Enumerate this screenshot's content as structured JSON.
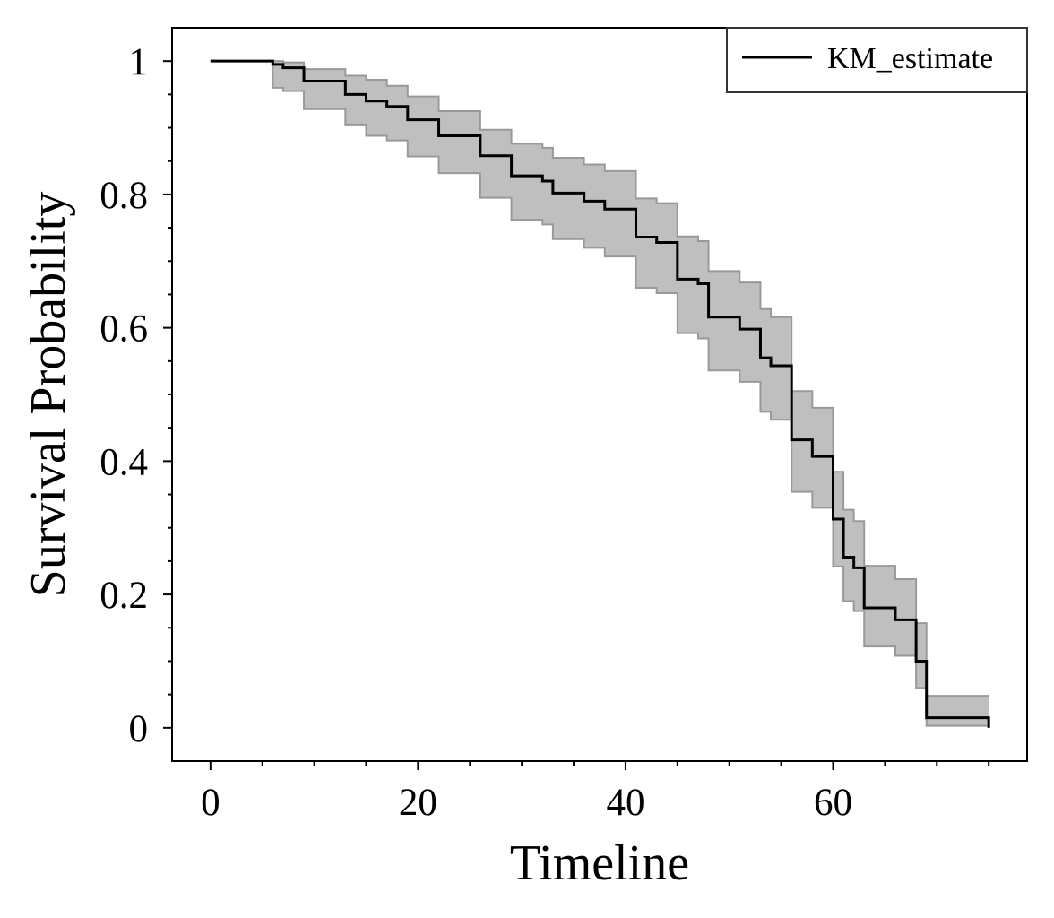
{
  "chart_data": {
    "type": "line",
    "title": "",
    "xlabel": "Timeline",
    "ylabel": "Survival Probability",
    "xlim": [
      -3.7,
      78.7
    ],
    "ylim": [
      -0.05,
      1.05
    ],
    "x_ticks": [
      0,
      20,
      40,
      60
    ],
    "x_tick_labels": [
      "0",
      "20",
      "40",
      "60"
    ],
    "x_minor_tick_step": 5,
    "y_ticks": [
      0,
      0.2,
      0.4,
      0.6,
      0.8,
      1
    ],
    "y_tick_labels": [
      "0",
      "0.2",
      "0.4",
      "0.6",
      "0.8",
      "1"
    ],
    "y_minor_tick_step": 0.05,
    "grid": false,
    "legend": {
      "position": "top-right",
      "entries": [
        "KM_estimate"
      ]
    },
    "colors": {
      "line": "#000000",
      "band": "#bfbfbf",
      "band_edge": "#999999"
    },
    "series": [
      {
        "name": "KM_estimate",
        "step": "post",
        "x": [
          0,
          6,
          7,
          9,
          13,
          15,
          17,
          19,
          22,
          26,
          29,
          32,
          33,
          36,
          38,
          41,
          43,
          45,
          47,
          48,
          51,
          53,
          54,
          56,
          58,
          60,
          61,
          62,
          63,
          66,
          68,
          69,
          75
        ],
        "y": [
          1.0,
          0.995,
          0.99,
          0.97,
          0.95,
          0.94,
          0.932,
          0.912,
          0.888,
          0.858,
          0.828,
          0.82,
          0.802,
          0.79,
          0.778,
          0.736,
          0.728,
          0.673,
          0.666,
          0.616,
          0.598,
          0.555,
          0.543,
          0.432,
          0.407,
          0.313,
          0.256,
          0.24,
          0.18,
          0.162,
          0.1,
          0.015,
          0.0
        ],
        "ci_lower": [
          1.0,
          0.96,
          0.955,
          0.928,
          0.905,
          0.888,
          0.881,
          0.857,
          0.832,
          0.795,
          0.762,
          0.755,
          0.733,
          0.72,
          0.707,
          0.66,
          0.652,
          0.592,
          0.584,
          0.536,
          0.519,
          0.474,
          0.462,
          0.354,
          0.33,
          0.242,
          0.19,
          0.175,
          0.122,
          0.108,
          0.06,
          0.003,
          0.003
        ],
        "ci_upper": [
          1.0,
          1.0,
          0.998,
          0.988,
          0.978,
          0.972,
          0.963,
          0.947,
          0.925,
          0.897,
          0.876,
          0.87,
          0.855,
          0.845,
          0.835,
          0.794,
          0.787,
          0.737,
          0.73,
          0.685,
          0.668,
          0.628,
          0.616,
          0.505,
          0.48,
          0.384,
          0.327,
          0.31,
          0.243,
          0.223,
          0.157,
          0.048,
          0.048
        ]
      }
    ]
  }
}
